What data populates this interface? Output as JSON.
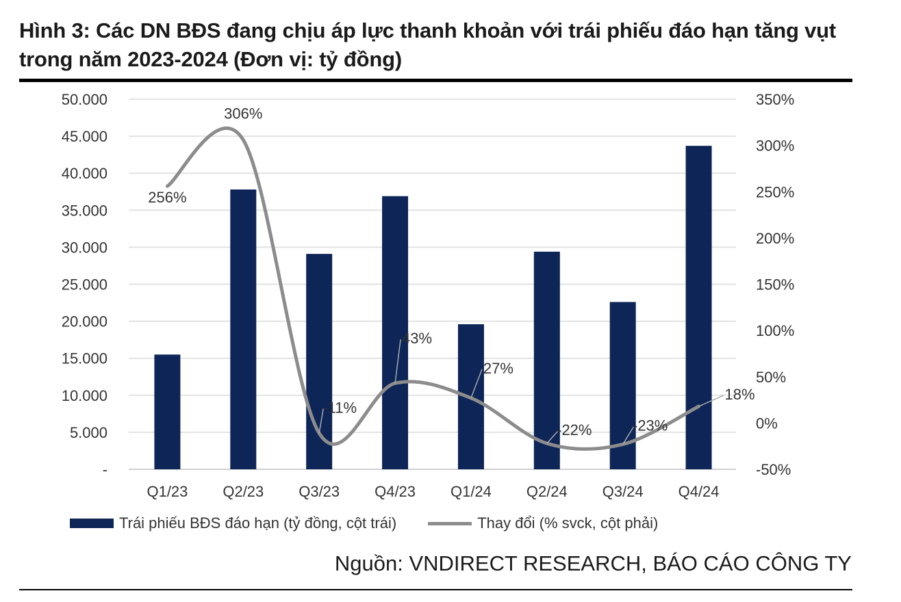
{
  "title": "Hình 3: Các DN BĐS đang chịu áp lực thanh khoản với trái phiếu đáo hạn tăng vụt trong năm 2023-2024 (Đơn vị: tỷ đồng)",
  "source": "Nguồn: VNDIRECT RESEARCH, BÁO CÁO CÔNG TY",
  "chart_data": {
    "type": "bar+line",
    "categories": [
      "Q1/23",
      "Q2/23",
      "Q3/23",
      "Q4/23",
      "Q1/24",
      "Q2/24",
      "Q3/24",
      "Q4/24"
    ],
    "series": [
      {
        "name": "Trái phiếu BĐS đáo hạn (tỷ đồng, cột trái)",
        "type": "bar",
        "axis": "left",
        "color": "#0d2557",
        "values": [
          15500,
          37800,
          29100,
          36900,
          19600,
          29400,
          22600,
          43700
        ]
      },
      {
        "name": "Thay đổi (% svck, cột phải)",
        "type": "line",
        "axis": "right",
        "color": "#8c8c8c",
        "values": [
          256,
          306,
          -11,
          43,
          27,
          -22,
          -23,
          18
        ],
        "labels": [
          "256%",
          "306%",
          "-11%",
          "43%",
          "27%",
          "-22%",
          "-23%",
          "18%"
        ]
      }
    ],
    "left_axis": {
      "ylim": [
        0,
        50000
      ],
      "ticks": [
        "-",
        "5.000",
        "10.000",
        "15.000",
        "20.000",
        "25.000",
        "30.000",
        "35.000",
        "40.000",
        "45.000",
        "50.000"
      ]
    },
    "right_axis": {
      "ylim": [
        -50,
        350
      ],
      "ticks": [
        "-50%",
        "0%",
        "50%",
        "100%",
        "150%",
        "200%",
        "250%",
        "300%",
        "350%"
      ]
    },
    "grid": true,
    "legend": "bottom"
  }
}
